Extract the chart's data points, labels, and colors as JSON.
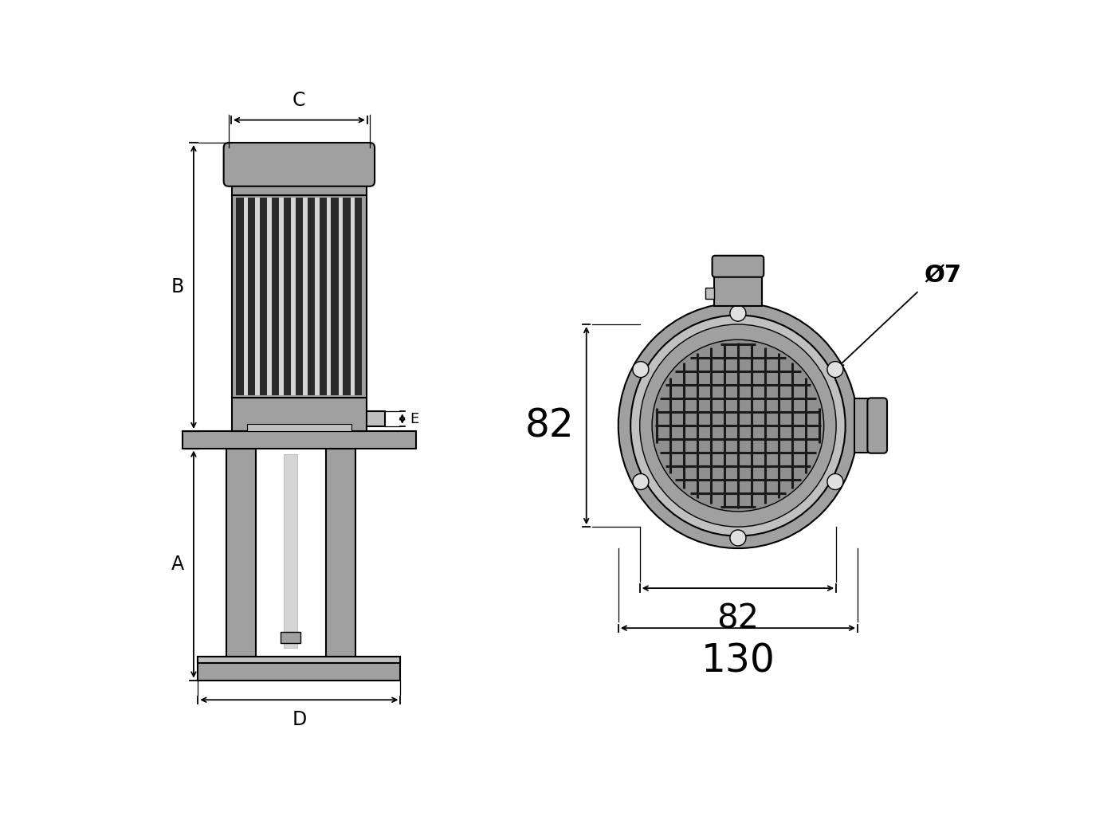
{
  "bg_color": "#ffffff",
  "gray_dark": "#707070",
  "gray_medium": "#a0a0a0",
  "gray_light": "#c0c0c0",
  "gray_lighter": "#d5d5d5",
  "gray_lightest": "#e0e0e0",
  "black": "#000000",
  "annotations": {
    "label_A": "A",
    "label_B": "B",
    "label_C": "C",
    "label_D": "D",
    "label_E": "E",
    "dim_82v": "82",
    "dim_82h": "82",
    "dim_130": "130",
    "dim_phi7": "Ø7"
  }
}
